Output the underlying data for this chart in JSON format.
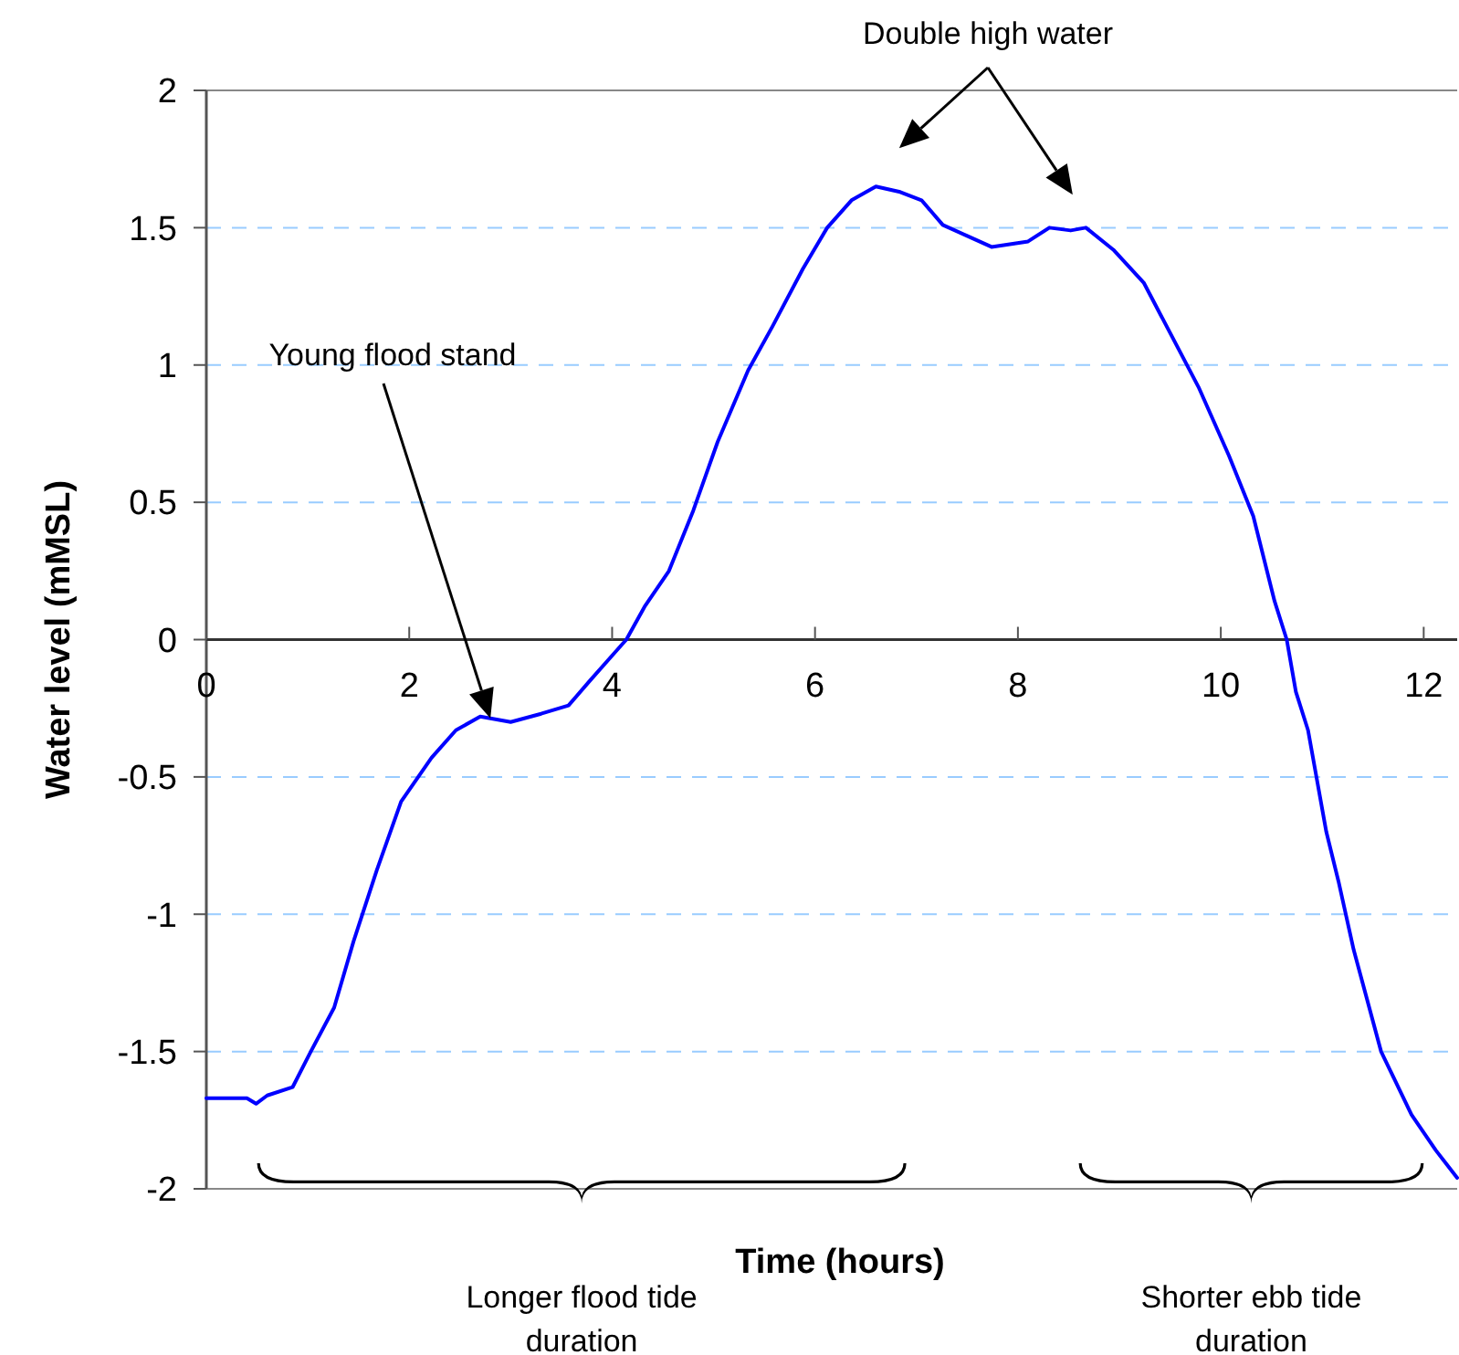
{
  "chart_data": {
    "type": "line",
    "xlabel": "Time (hours)",
    "ylabel": "Water level (mMSL)",
    "x": [
      0,
      0.4,
      0.49,
      0.6,
      0.85,
      1.03,
      1.26,
      1.45,
      1.68,
      1.92,
      2.22,
      2.46,
      2.7,
      3.0,
      3.3,
      3.57,
      3.78,
      4.02,
      4.14,
      4.32,
      4.56,
      4.8,
      5.04,
      5.34,
      5.58,
      5.88,
      6.12,
      6.36,
      6.6,
      6.84,
      7.05,
      7.26,
      7.5,
      7.74,
      8.1,
      8.31,
      8.52,
      8.67,
      8.94,
      9.24,
      9.51,
      9.78,
      10.08,
      10.32,
      10.53,
      10.65,
      10.74,
      10.86,
      11.04,
      11.16,
      11.31,
      11.58,
      11.88,
      12.12,
      12.33
    ],
    "series": [
      {
        "color": "#0000ff",
        "values": [
          -1.67,
          -1.67,
          -1.69,
          -1.66,
          -1.63,
          -1.5,
          -1.34,
          -1.1,
          -0.84,
          -0.59,
          -0.43,
          -0.33,
          -0.28,
          -0.3,
          -0.27,
          -0.24,
          -0.15,
          -0.05,
          0,
          0.12,
          0.25,
          0.47,
          0.72,
          0.98,
          1.14,
          1.35,
          1.5,
          1.6,
          1.65,
          1.63,
          1.6,
          1.51,
          1.47,
          1.43,
          1.45,
          1.5,
          1.49,
          1.5,
          1.42,
          1.3,
          1.11,
          0.92,
          0.67,
          0.45,
          0.14,
          0,
          -0.19,
          -0.33,
          -0.7,
          -0.88,
          -1.13,
          -1.5,
          -1.73,
          -1.86,
          -1.96
        ]
      }
    ],
    "xlim": [
      0,
      12.33
    ],
    "xticks": [
      0,
      2,
      4,
      6,
      8,
      10,
      12
    ],
    "ylim": [
      -2,
      2
    ],
    "yticks": [
      -2,
      -1.5,
      -1,
      -0.5,
      0,
      0.5,
      1,
      1.5,
      2
    ],
    "grid": "y",
    "line_style": "solid",
    "marker": "none",
    "annotations": [
      "Young flood stand",
      "Double high water",
      "Longer flood tide duration",
      "Shorter ebb tide duration"
    ]
  }
}
